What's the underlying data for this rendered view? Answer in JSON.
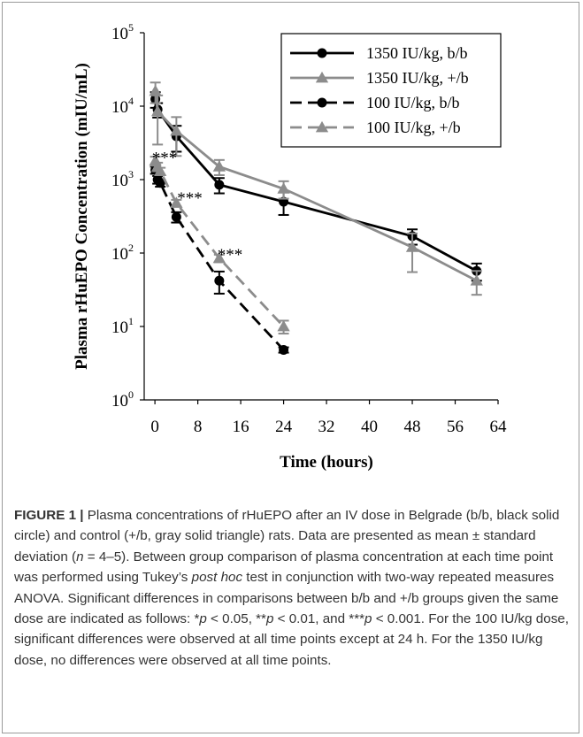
{
  "chart_data": {
    "type": "line",
    "title": "",
    "xlabel": "Time (hours)",
    "ylabel": "Plasma rHuEPO Concentration (mIU/mL)",
    "xlim": [
      -2,
      64
    ],
    "ylim": [
      1,
      100000
    ],
    "yscale": "log",
    "x_ticks": [
      0,
      8,
      16,
      24,
      32,
      40,
      48,
      56,
      64
    ],
    "x_tick_labels": [
      "0",
      "8",
      "16",
      "24",
      "32",
      "40",
      "48",
      "56",
      "64"
    ],
    "y_ticks": [
      1,
      10,
      100,
      1000,
      10000,
      100000
    ],
    "y_tick_base": "10",
    "y_tick_exponents": [
      "0",
      "1",
      "2",
      "3",
      "4",
      "5"
    ],
    "grid": false,
    "legend_position": "top-right",
    "series": [
      {
        "name": "1350 IU/kg, b/b",
        "color": "#000000",
        "dash": "solid",
        "marker": "circle",
        "points": [
          {
            "x": 0.083,
            "y": 12500,
            "sd": 3000
          },
          {
            "x": 0.5,
            "y": 9000,
            "sd": 2000
          },
          {
            "x": 4,
            "y": 3900,
            "sd": 1500
          },
          {
            "x": 12,
            "y": 850,
            "sd": 200
          },
          {
            "x": 24,
            "y": 500,
            "sd": 170
          },
          {
            "x": 48,
            "y": 170,
            "sd": 40
          },
          {
            "x": 60,
            "y": 57,
            "sd": 15
          }
        ]
      },
      {
        "name": "1350 IU/kg, +/b",
        "color": "#8c8c8c",
        "dash": "solid",
        "marker": "triangle",
        "points": [
          {
            "x": 0.083,
            "y": 16000,
            "sd": 5000
          },
          {
            "x": 0.5,
            "y": 8500,
            "sd": 5500
          },
          {
            "x": 4,
            "y": 4600,
            "sd": 2500
          },
          {
            "x": 12,
            "y": 1500,
            "sd": 350
          },
          {
            "x": 24,
            "y": 750,
            "sd": 200
          },
          {
            "x": 48,
            "y": 120,
            "sd": 65
          },
          {
            "x": 60,
            "y": 42,
            "sd": 15
          }
        ]
      },
      {
        "name": "100 IU/kg, b/b",
        "color": "#000000",
        "dash": "dashed",
        "marker": "circle",
        "points": [
          {
            "x": 0.083,
            "y": 1350,
            "sd": 150
          },
          {
            "x": 0.5,
            "y": 1000,
            "sd": 120
          },
          {
            "x": 1,
            "y": 900,
            "sd": 100
          },
          {
            "x": 4,
            "y": 310,
            "sd": 50
          },
          {
            "x": 12,
            "y": 42,
            "sd": 14
          },
          {
            "x": 24,
            "y": 4.8,
            "sd": 0.4
          }
        ]
      },
      {
        "name": "100 IU/kg, +/b",
        "color": "#8c8c8c",
        "dash": "dashed",
        "marker": "triangle",
        "points": [
          {
            "x": 0.083,
            "y": 1800,
            "sd": 250
          },
          {
            "x": 0.5,
            "y": 1500,
            "sd": 200
          },
          {
            "x": 1,
            "y": 1300,
            "sd": 150
          },
          {
            "x": 4,
            "y": 480,
            "sd": 50
          },
          {
            "x": 12,
            "y": 85,
            "sd": 10
          },
          {
            "x": 24,
            "y": 10,
            "sd": 2
          }
        ]
      }
    ],
    "annotations": [
      {
        "text": "***",
        "x": 1.8,
        "y": 2200
      },
      {
        "text": "***",
        "x": 6.5,
        "y": 620
      },
      {
        "text": "***",
        "x": 14.0,
        "y": 106
      }
    ]
  },
  "caption": {
    "label": "FIGURE 1 |",
    "segments": [
      {
        "t": " Plasma concentrations of rHuEPO after an IV dose in Belgrade (b/b, black solid circle) and control (+/b, gray solid triangle) rats. Data are presented as mean ± standard deviation (",
        "i": false
      },
      {
        "t": "n",
        "i": true
      },
      {
        "t": " = 4–5). Between group comparison of plasma concentration at each time point was performed using Tukey’s ",
        "i": false
      },
      {
        "t": "post hoc",
        "i": true
      },
      {
        "t": " test in conjunction with two-way repeated measures ANOVA. Significant differences in comparisons between b/b and +/b groups given the same dose are indicated as follows: *",
        "i": false
      },
      {
        "t": "p",
        "i": true
      },
      {
        "t": " < 0.05, **",
        "i": false
      },
      {
        "t": "p",
        "i": true
      },
      {
        "t": " < 0.01, and ***",
        "i": false
      },
      {
        "t": "p",
        "i": true
      },
      {
        "t": " < 0.001. For the 100 IU/kg dose, significant differences were observed at all time points except at 24 h. For the 1350 IU/kg dose, no differences were observed at all time points.",
        "i": false
      }
    ]
  }
}
